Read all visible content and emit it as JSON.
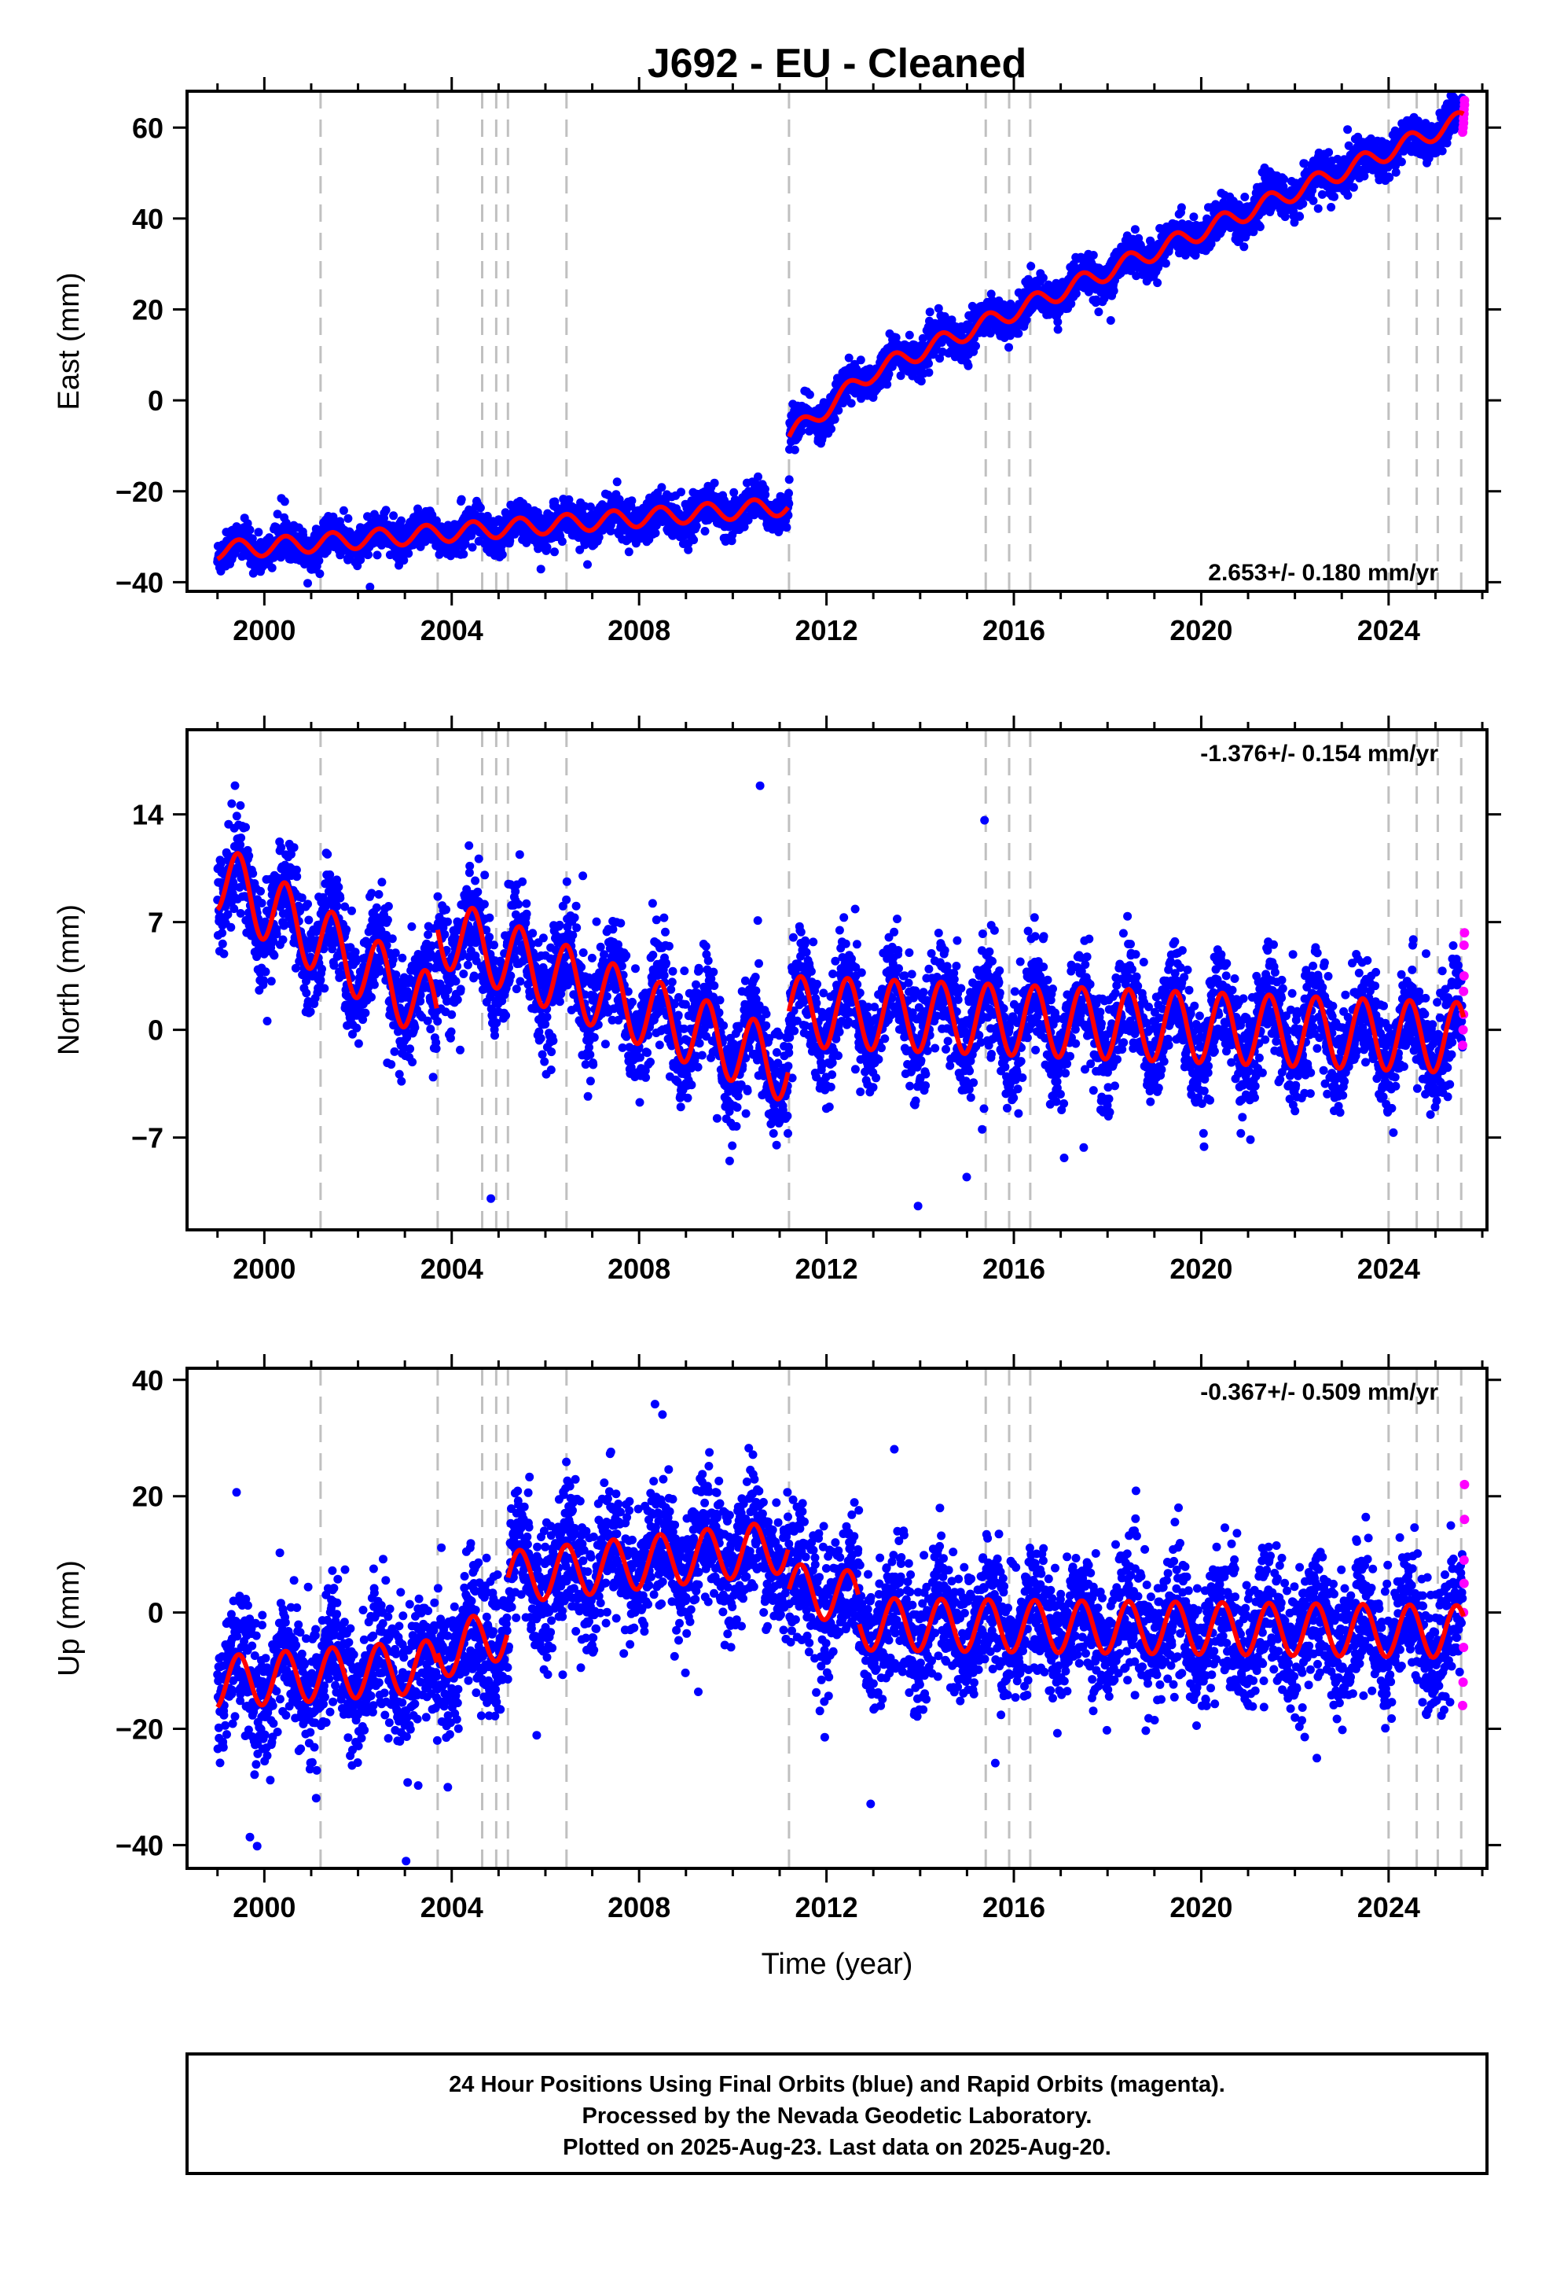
{
  "title": "J692  - EU - Cleaned",
  "colors": {
    "final_orbits": "#0000ff",
    "rapid_orbits": "#ff00ff",
    "model": "#ff0000",
    "event_lines": "#c0c0c0"
  },
  "chart_data": [
    {
      "type": "scatter",
      "component": "east",
      "ylabel": "East (mm)",
      "rate_text": "2.653+/- 0.180 mm/yr",
      "xlim": [
        1998.35,
        2026.1
      ],
      "ylim": [
        -42,
        68
      ],
      "yticks": [
        -40,
        -20,
        0,
        20,
        40,
        60
      ],
      "ytick_labels": [
        "−40",
        "−20",
        "0",
        "20",
        "40",
        "60"
      ],
      "xticks": [
        2000,
        2004,
        2008,
        2012,
        2016,
        2020,
        2024
      ],
      "xtick_labels": [
        "2000",
        "2004",
        "2008",
        "2012",
        "2016",
        "2020",
        "2024"
      ],
      "event_lines": [
        2001.2,
        2003.7,
        2004.65,
        2004.95,
        2005.2,
        2006.45,
        2011.2,
        2015.4,
        2015.9,
        2016.35,
        2024.0,
        2024.6,
        2025.05,
        2025.55
      ],
      "model": {
        "segments": [
          {
            "x0": 1999.0,
            "x1": 2011.19,
            "a": -33.0,
            "b": 0.8,
            "at": 1999.0
          },
          {
            "x0": 2011.2,
            "x1": 2013.0,
            "a": -8.0,
            "b": 8.0,
            "at": 2011.2
          },
          {
            "x0": 2013.0,
            "x1": 2025.6,
            "a": 6.4,
            "b": 4.4,
            "at": 2013.0
          }
        ],
        "seasonal_amplitude": 2.0,
        "noise_sd": 2.0
      },
      "rapid_points": [
        [
          2025.58,
          59
        ],
        [
          2025.59,
          60
        ],
        [
          2025.6,
          61
        ],
        [
          2025.6,
          62
        ],
        [
          2025.61,
          63
        ],
        [
          2025.61,
          64
        ],
        [
          2025.62,
          65
        ],
        [
          2025.62,
          66
        ]
      ]
    },
    {
      "type": "scatter",
      "component": "north",
      "ylabel": "North (mm)",
      "rate_text": "-1.376+/- 0.154 mm/yr",
      "xlim": [
        1998.35,
        2026.1
      ],
      "ylim": [
        -13,
        19.5
      ],
      "yticks": [
        -7,
        0,
        7,
        14
      ],
      "ytick_labels": [
        "−7",
        "0",
        "7",
        "14"
      ],
      "xticks": [
        2000,
        2004,
        2008,
        2012,
        2016,
        2020,
        2024
      ],
      "xtick_labels": [
        "2000",
        "2004",
        "2008",
        "2012",
        "2016",
        "2020",
        "2024"
      ],
      "event_lines": [
        2001.2,
        2003.7,
        2004.65,
        2004.95,
        2005.2,
        2006.45,
        2011.2,
        2015.4,
        2015.9,
        2016.35,
        2024.0,
        2024.6,
        2025.05,
        2025.55
      ],
      "model": {
        "segments": [
          {
            "x0": 1999.0,
            "x1": 2003.69,
            "a": 10.0,
            "b": -1.9,
            "at": 1999.0
          },
          {
            "x0": 2003.7,
            "x1": 2011.19,
            "a": 6.5,
            "b": -1.2,
            "at": 2003.7
          },
          {
            "x0": 2011.2,
            "x1": 2025.6,
            "a": 1.2,
            "b": -0.12,
            "at": 2011.2
          }
        ],
        "seasonal_amplitude": 2.3,
        "noise_sd": 1.7
      },
      "rapid_points": [
        [
          2025.58,
          -1
        ],
        [
          2025.59,
          0
        ],
        [
          2025.6,
          1
        ],
        [
          2025.6,
          2.5
        ],
        [
          2025.61,
          3.5
        ],
        [
          2025.61,
          5.5
        ],
        [
          2025.62,
          6.3
        ]
      ]
    },
    {
      "type": "scatter",
      "component": "up",
      "ylabel": "Up (mm)",
      "xlabel": "Time (year)",
      "rate_text": "-0.367+/- 0.509 mm/yr",
      "xlim": [
        1998.35,
        2026.1
      ],
      "ylim": [
        -44,
        42
      ],
      "yticks": [
        -40,
        -20,
        0,
        20,
        40
      ],
      "ytick_labels": [
        "−40",
        "−20",
        "0",
        "20",
        "40"
      ],
      "xticks": [
        2000,
        2004,
        2008,
        2012,
        2016,
        2020,
        2024
      ],
      "xtick_labels": [
        "2000",
        "2004",
        "2008",
        "2012",
        "2016",
        "2020",
        "2024"
      ],
      "event_lines": [
        2001.2,
        2003.7,
        2004.65,
        2004.95,
        2005.2,
        2006.45,
        2011.2,
        2015.4,
        2015.9,
        2016.35,
        2024.0,
        2024.6,
        2025.05,
        2025.55
      ],
      "model": {
        "segments": [
          {
            "x0": 1999.0,
            "x1": 2003.69,
            "a": -12.0,
            "b": 0.6,
            "at": 1999.0
          },
          {
            "x0": 2003.7,
            "x1": 2005.19,
            "a": -7.0,
            "b": 2.5,
            "at": 2003.7
          },
          {
            "x0": 2005.2,
            "x1": 2011.19,
            "a": 6.0,
            "b": 0.9,
            "at": 2005.2
          },
          {
            "x0": 2011.2,
            "x1": 2012.69,
            "a": 4.0,
            "b": -1.0,
            "at": 2011.2
          },
          {
            "x0": 2012.7,
            "x1": 2025.6,
            "a": -2.0,
            "b": -0.1,
            "at": 2012.7
          }
        ],
        "seasonal_amplitude": 4.5,
        "noise_sd": 5.5
      },
      "rapid_points": [
        [
          2025.58,
          -16
        ],
        [
          2025.59,
          -12
        ],
        [
          2025.6,
          -6
        ],
        [
          2025.6,
          0
        ],
        [
          2025.61,
          5
        ],
        [
          2025.61,
          9
        ],
        [
          2025.62,
          16
        ],
        [
          2025.62,
          22
        ]
      ]
    }
  ],
  "footer": {
    "line1": "24 Hour Positions Using Final Orbits (blue) and Rapid Orbits (magenta).",
    "line2": "Processed by the Nevada Geodetic Laboratory.",
    "line3": "Plotted on 2025-Aug-23. Last data on 2025-Aug-20."
  }
}
